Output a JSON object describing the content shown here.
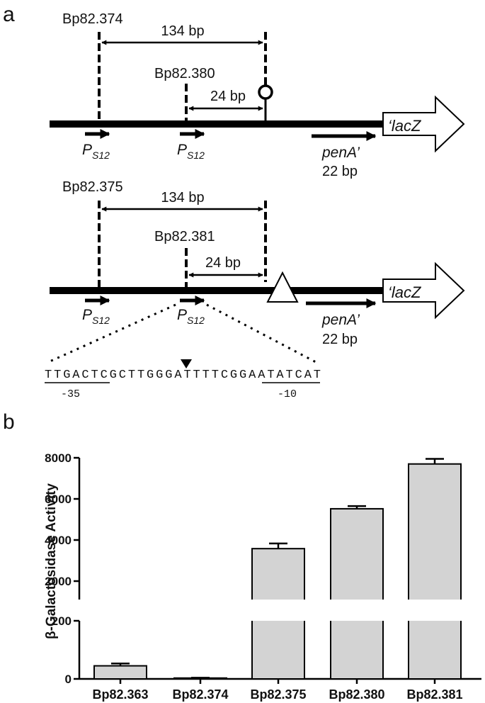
{
  "panel_a": {
    "label": "a",
    "top": {
      "construct_long": "Bp82.374",
      "construct_short": "Bp82.380",
      "dist_long": "134 bp",
      "dist_short": "24 bp",
      "promoter_main": "P",
      "promoter_sub": "S12",
      "pena": "penA’",
      "pena_len": "22 bp",
      "lacz": "‘lacZ"
    },
    "bottom": {
      "construct_long": "Bp82.375",
      "construct_short": "Bp82.381",
      "dist_long": "134 bp",
      "dist_short": "24 bp",
      "promoter_main": "P",
      "promoter_sub": "S12",
      "pena": "penA’",
      "pena_len": "22 bp",
      "lacz": "‘lacZ"
    },
    "sequence": "TTGACTCGCTTGGGATTTTCGGAATATCAT",
    "box_minus35": "-35",
    "box_minus10": "-10"
  },
  "panel_b": {
    "label": "b"
  },
  "chart_data": {
    "type": "bar",
    "ylabel": "β-Galactosidase Activity",
    "categories": [
      "Bp82.363",
      "Bp82.374",
      "Bp82.375",
      "Bp82.380",
      "Bp82.381"
    ],
    "values": [
      45,
      3,
      3580,
      5520,
      7700
    ],
    "errors": [
      8,
      1,
      250,
      130,
      250
    ],
    "axis_break": {
      "lower": [
        0,
        200
      ],
      "upper": [
        2000,
        8000
      ]
    },
    "ticks_lower": [
      "0",
      "200"
    ],
    "ticks_upper": [
      "2000",
      "4000",
      "6000",
      "8000"
    ],
    "bar_color": "#d3d3d3"
  }
}
